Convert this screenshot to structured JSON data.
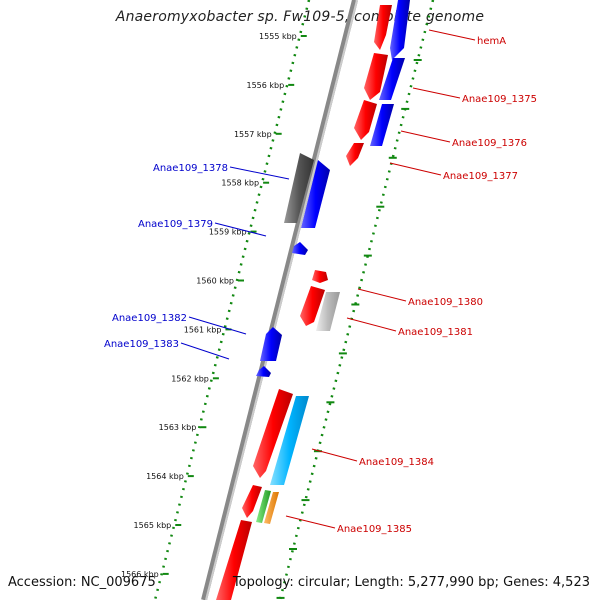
{
  "title": "Anaeromyxobacter sp. Fw109-5, complete genome",
  "footer": {
    "accession": "Accession: NC_009675",
    "topology": "Topology: circular; Length: 5,277,990 bp; Genes: 4,523"
  },
  "colors": {
    "forward_cds": "#ff0000",
    "reverse_cds": "#0000ff",
    "pseudo_gray": "#555555",
    "light_gray": "#bbbbbb",
    "cyan": "#00b4ff",
    "green": "#33bb33",
    "orange": "#ff8800",
    "label_red": "#cc0000",
    "label_blue": "#0000cc",
    "scale_green": "#118811"
  },
  "scale_ticks": [
    "1555 kbp",
    "1556 kbp",
    "1557 kbp",
    "1558 kbp",
    "1559 kbp",
    "1560 kbp",
    "1561 kbp",
    "1562 kbp",
    "1563 kbp",
    "1564 kbp",
    "1565 kbp",
    "1566 kbp"
  ],
  "gene_labels_right": [
    "hemA",
    "Anae109_1375",
    "Anae109_1376",
    "Anae109_1377",
    "Anae109_1380",
    "Anae109_1381",
    "Anae109_1384",
    "Anae109_1385"
  ],
  "gene_labels_left": [
    "Anae109_1378",
    "Anae109_1379",
    "Anae109_1382",
    "Anae109_1383"
  ]
}
